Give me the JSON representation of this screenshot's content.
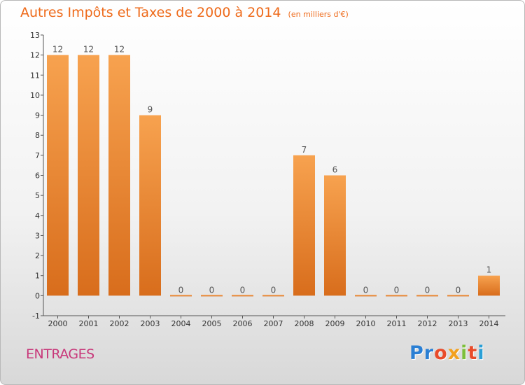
{
  "header": {
    "title": "Autres Impôts et Taxes de 2000 à 2014",
    "subtitle": "(en milliers d'€)"
  },
  "footer": {
    "place": "ENTRAGES",
    "logo_letters": [
      "P",
      "r",
      "o",
      "x",
      "i",
      "t",
      "i"
    ],
    "logo_colors": [
      "#2a7fd4",
      "#2a7fd4",
      "#e94b2a",
      "#f2a11f",
      "#7cbf3a",
      "#e94b2a",
      "#2a9fd6"
    ]
  },
  "colors": {
    "bar_light": "#f7a24f",
    "bar_dark": "#d86d1c",
    "title": "#ee6a1a",
    "place": "#c8387a"
  },
  "chart_data": {
    "type": "bar",
    "title": "Autres Impôts et Taxes de 2000 à 2014",
    "subtitle": "(en milliers d'€)",
    "xlabel": "",
    "ylabel": "",
    "categories": [
      "2000",
      "2001",
      "2002",
      "2003",
      "2004",
      "2005",
      "2006",
      "2007",
      "2008",
      "2009",
      "2010",
      "2011",
      "2012",
      "2013",
      "2014"
    ],
    "values": [
      12,
      12,
      12,
      9,
      0,
      0,
      0,
      0,
      7,
      6,
      0,
      0,
      0,
      0,
      1
    ],
    "value_labels": [
      "12",
      "12",
      "12",
      "9",
      "0",
      "0",
      "0",
      "0",
      "7",
      "6",
      "0",
      "0",
      "0",
      "0",
      "1"
    ],
    "ylim": [
      -1,
      13
    ],
    "yticks": [
      -1,
      0,
      1,
      2,
      3,
      4,
      5,
      6,
      7,
      8,
      9,
      10,
      11,
      12,
      13
    ],
    "grid": false,
    "legend": "none"
  }
}
